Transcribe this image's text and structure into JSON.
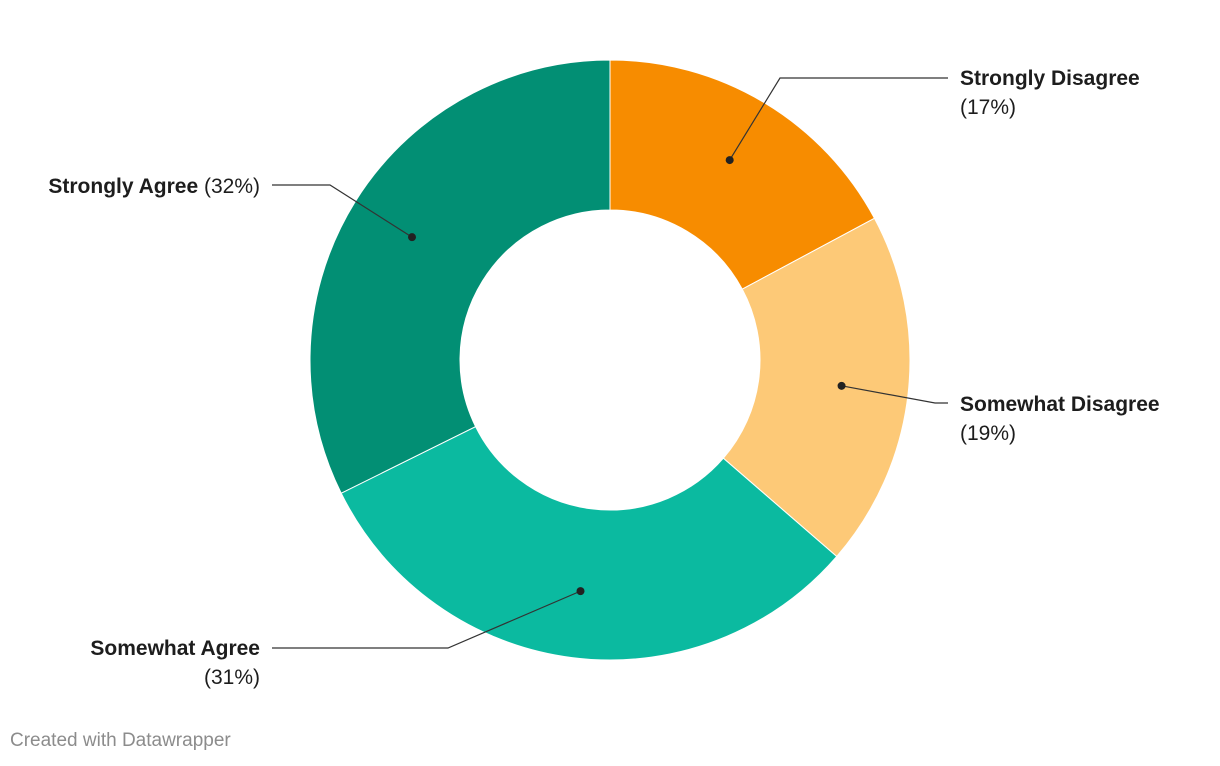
{
  "chart_data": {
    "type": "pie",
    "variant": "donut",
    "slices": [
      {
        "label": "Strongly Disagree",
        "value": 17,
        "display": "(17%)",
        "color": "#f78c00"
      },
      {
        "label": "Somewhat Disagree",
        "value": 19,
        "display": "(19%)",
        "color": "#fdc977"
      },
      {
        "label": "Somewhat Agree",
        "value": 31,
        "display": "(31%)",
        "color": "#0bbaa0"
      },
      {
        "label": "Strongly Agree",
        "value": 32,
        "display": "(32%)",
        "color": "#028f74"
      }
    ]
  },
  "footer": {
    "credit": "Created with Datawrapper"
  }
}
